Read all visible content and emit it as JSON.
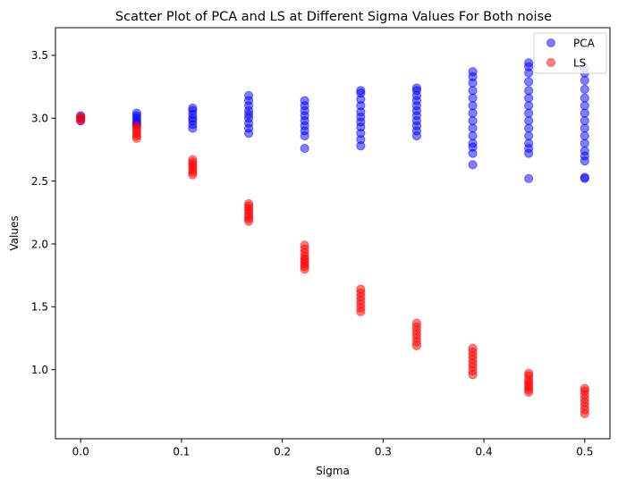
{
  "chart_data": {
    "type": "scatter",
    "title": "Scatter Plot of PCA and LS at Different Sigma Values For Both noise",
    "xlabel": "Sigma",
    "ylabel": "Values",
    "xlim": [
      -0.025,
      0.525
    ],
    "ylim": [
      0.45,
      3.72
    ],
    "xticks": [
      0.0,
      0.1,
      0.2,
      0.3,
      0.4,
      0.5
    ],
    "xtick_labels": [
      "0.0",
      "0.1",
      "0.2",
      "0.3",
      "0.4",
      "0.5"
    ],
    "yticks": [
      1.0,
      1.5,
      2.0,
      2.5,
      3.0,
      3.5
    ],
    "ytick_labels": [
      "1.0",
      "1.5",
      "2.0",
      "2.5",
      "3.0",
      "3.5"
    ],
    "grid": false,
    "legend": {
      "position": "top-right",
      "entries": [
        "PCA",
        "LS"
      ]
    },
    "series": [
      {
        "name": "PCA",
        "color": "#0000ff",
        "points": [
          [
            0.0,
            2.98
          ],
          [
            0.0,
            3.0
          ],
          [
            0.0,
            3.02
          ],
          [
            0.0556,
            2.96
          ],
          [
            0.0556,
            2.98
          ],
          [
            0.0556,
            3.0
          ],
          [
            0.0556,
            3.02
          ],
          [
            0.0556,
            3.04
          ],
          [
            0.0556,
            2.95
          ],
          [
            0.1111,
            2.92
          ],
          [
            0.1111,
            2.95
          ],
          [
            0.1111,
            2.98
          ],
          [
            0.1111,
            3.0
          ],
          [
            0.1111,
            3.03
          ],
          [
            0.1111,
            3.06
          ],
          [
            0.1111,
            3.08
          ],
          [
            0.1667,
            2.88
          ],
          [
            0.1667,
            2.92
          ],
          [
            0.1667,
            2.96
          ],
          [
            0.1667,
            3.0
          ],
          [
            0.1667,
            3.03
          ],
          [
            0.1667,
            3.06
          ],
          [
            0.1667,
            3.1
          ],
          [
            0.1667,
            3.14
          ],
          [
            0.1667,
            3.18
          ],
          [
            0.2222,
            2.76
          ],
          [
            0.2222,
            2.86
          ],
          [
            0.2222,
            2.9
          ],
          [
            0.2222,
            2.94
          ],
          [
            0.2222,
            2.98
          ],
          [
            0.2222,
            3.02
          ],
          [
            0.2222,
            3.06
          ],
          [
            0.2222,
            3.1
          ],
          [
            0.2222,
            3.14
          ],
          [
            0.2778,
            2.78
          ],
          [
            0.2778,
            2.83
          ],
          [
            0.2778,
            2.88
          ],
          [
            0.2778,
            2.93
          ],
          [
            0.2778,
            2.97
          ],
          [
            0.2778,
            3.01
          ],
          [
            0.2778,
            3.05
          ],
          [
            0.2778,
            3.1
          ],
          [
            0.2778,
            3.15
          ],
          [
            0.2778,
            3.2
          ],
          [
            0.2778,
            3.22
          ],
          [
            0.3333,
            2.86
          ],
          [
            0.3333,
            2.9
          ],
          [
            0.3333,
            2.94
          ],
          [
            0.3333,
            2.98
          ],
          [
            0.3333,
            3.02
          ],
          [
            0.3333,
            3.06
          ],
          [
            0.3333,
            3.1
          ],
          [
            0.3333,
            3.14
          ],
          [
            0.3333,
            3.18
          ],
          [
            0.3333,
            3.22
          ],
          [
            0.3333,
            3.24
          ],
          [
            0.3889,
            2.63
          ],
          [
            0.3889,
            2.72
          ],
          [
            0.3889,
            2.77
          ],
          [
            0.3889,
            2.8
          ],
          [
            0.3889,
            2.86
          ],
          [
            0.3889,
            2.92
          ],
          [
            0.3889,
            2.98
          ],
          [
            0.3889,
            3.04
          ],
          [
            0.3889,
            3.1
          ],
          [
            0.3889,
            3.16
          ],
          [
            0.3889,
            3.22
          ],
          [
            0.3889,
            3.28
          ],
          [
            0.3889,
            3.33
          ],
          [
            0.3889,
            3.37
          ],
          [
            0.4444,
            2.52
          ],
          [
            0.4444,
            2.72
          ],
          [
            0.4444,
            2.76
          ],
          [
            0.4444,
            2.8
          ],
          [
            0.4444,
            2.86
          ],
          [
            0.4444,
            2.92
          ],
          [
            0.4444,
            2.98
          ],
          [
            0.4444,
            3.04
          ],
          [
            0.4444,
            3.1
          ],
          [
            0.4444,
            3.16
          ],
          [
            0.4444,
            3.22
          ],
          [
            0.4444,
            3.29
          ],
          [
            0.4444,
            3.36
          ],
          [
            0.4444,
            3.41
          ],
          [
            0.4444,
            3.44
          ],
          [
            0.5,
            2.52
          ],
          [
            0.5,
            2.53
          ],
          [
            0.5,
            2.66
          ],
          [
            0.5,
            2.7
          ],
          [
            0.5,
            2.74
          ],
          [
            0.5,
            2.8
          ],
          [
            0.5,
            2.86
          ],
          [
            0.5,
            2.92
          ],
          [
            0.5,
            2.98
          ],
          [
            0.5,
            3.04
          ],
          [
            0.5,
            3.1
          ],
          [
            0.5,
            3.16
          ],
          [
            0.5,
            3.23
          ],
          [
            0.5,
            3.3
          ],
          [
            0.5,
            3.36
          ],
          [
            0.5,
            3.4
          ]
        ]
      },
      {
        "name": "LS",
        "color": "#ff0000",
        "points": [
          [
            0.0,
            2.98
          ],
          [
            0.0,
            3.0
          ],
          [
            0.0,
            3.01
          ],
          [
            0.0556,
            2.84
          ],
          [
            0.0556,
            2.86
          ],
          [
            0.0556,
            2.88
          ],
          [
            0.0556,
            2.9
          ],
          [
            0.0556,
            2.92
          ],
          [
            0.0556,
            2.94
          ],
          [
            0.1111,
            2.55
          ],
          [
            0.1111,
            2.57
          ],
          [
            0.1111,
            2.59
          ],
          [
            0.1111,
            2.61
          ],
          [
            0.1111,
            2.63
          ],
          [
            0.1111,
            2.65
          ],
          [
            0.1111,
            2.67
          ],
          [
            0.1667,
            2.18
          ],
          [
            0.1667,
            2.2
          ],
          [
            0.1667,
            2.22
          ],
          [
            0.1667,
            2.24
          ],
          [
            0.1667,
            2.26
          ],
          [
            0.1667,
            2.28
          ],
          [
            0.1667,
            2.3
          ],
          [
            0.1667,
            2.32
          ],
          [
            0.2222,
            1.8
          ],
          [
            0.2222,
            1.82
          ],
          [
            0.2222,
            1.84
          ],
          [
            0.2222,
            1.86
          ],
          [
            0.2222,
            1.88
          ],
          [
            0.2222,
            1.9
          ],
          [
            0.2222,
            1.93
          ],
          [
            0.2222,
            1.96
          ],
          [
            0.2222,
            1.99
          ],
          [
            0.2778,
            1.46
          ],
          [
            0.2778,
            1.49
          ],
          [
            0.2778,
            1.52
          ],
          [
            0.2778,
            1.55
          ],
          [
            0.2778,
            1.58
          ],
          [
            0.2778,
            1.61
          ],
          [
            0.2778,
            1.64
          ],
          [
            0.3333,
            1.19
          ],
          [
            0.3333,
            1.22
          ],
          [
            0.3333,
            1.25
          ],
          [
            0.3333,
            1.28
          ],
          [
            0.3333,
            1.31
          ],
          [
            0.3333,
            1.34
          ],
          [
            0.3333,
            1.37
          ],
          [
            0.3889,
            0.96
          ],
          [
            0.3889,
            0.99
          ],
          [
            0.3889,
            1.02
          ],
          [
            0.3889,
            1.05
          ],
          [
            0.3889,
            1.08
          ],
          [
            0.3889,
            1.11
          ],
          [
            0.3889,
            1.14
          ],
          [
            0.3889,
            1.17
          ],
          [
            0.4444,
            0.82
          ],
          [
            0.4444,
            0.84
          ],
          [
            0.4444,
            0.86
          ],
          [
            0.4444,
            0.88
          ],
          [
            0.4444,
            0.9
          ],
          [
            0.4444,
            0.92
          ],
          [
            0.4444,
            0.95
          ],
          [
            0.4444,
            0.97
          ],
          [
            0.5,
            0.65
          ],
          [
            0.5,
            0.68
          ],
          [
            0.5,
            0.71
          ],
          [
            0.5,
            0.74
          ],
          [
            0.5,
            0.77
          ],
          [
            0.5,
            0.8
          ],
          [
            0.5,
            0.83
          ],
          [
            0.5,
            0.85
          ]
        ]
      }
    ]
  }
}
